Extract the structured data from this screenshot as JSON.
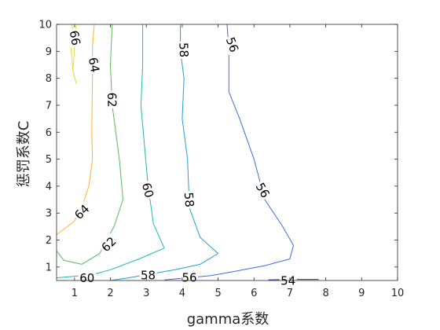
{
  "chart_data": {
    "type": "contour",
    "xlabel": "gamma系数",
    "ylabel": "惩罚系数C",
    "xlim": [
      0.5,
      10
    ],
    "ylim": [
      0.5,
      10
    ],
    "xticks": [
      1,
      2,
      3,
      4,
      5,
      6,
      7,
      8,
      9,
      10
    ],
    "yticks": [
      1,
      2,
      3,
      4,
      5,
      6,
      7,
      8,
      9,
      10
    ],
    "grid": false,
    "contours": [
      {
        "level": 66,
        "label": "66",
        "color": "#e8d833",
        "points": [
          [
            1.05,
            10.0
          ],
          [
            1.0,
            9.5
          ],
          [
            1.0,
            9.0
          ],
          [
            0.95,
            8.3
          ],
          [
            1.05,
            7.8
          ],
          [
            0.95,
            8.3
          ],
          [
            0.9,
            9.2
          ],
          [
            0.95,
            9.8
          ],
          [
            0.92,
            10.0
          ]
        ],
        "labels": [
          {
            "x": 1.02,
            "y": 9.5,
            "angle": 80
          }
        ]
      },
      {
        "level": 64,
        "label": "64",
        "color": "#fdb42f",
        "points": [
          [
            1.55,
            10.0
          ],
          [
            1.5,
            9.2
          ],
          [
            1.5,
            8.2
          ],
          [
            1.48,
            6.0
          ],
          [
            1.5,
            5.0
          ],
          [
            1.4,
            4.0
          ],
          [
            1.25,
            3.4
          ],
          [
            1.0,
            2.7
          ],
          [
            0.5,
            2.2
          ]
        ],
        "labels": [
          {
            "x": 1.55,
            "y": 8.5,
            "angle": 80
          },
          {
            "x": 1.2,
            "y": 3.05,
            "angle": -45
          }
        ]
      },
      {
        "level": 62,
        "label": "62",
        "color": "#58bb5a",
        "points": [
          [
            2.05,
            10.0
          ],
          [
            2.0,
            8.5
          ],
          [
            2.05,
            7.0
          ],
          [
            2.25,
            5.0
          ],
          [
            2.35,
            3.5
          ],
          [
            2.1,
            2.5
          ],
          [
            1.7,
            1.5
          ],
          [
            1.2,
            1.1
          ],
          [
            0.7,
            1.25
          ],
          [
            0.5,
            1.6
          ]
        ],
        "labels": [
          {
            "x": 2.05,
            "y": 7.2,
            "angle": 88
          },
          {
            "x": 1.95,
            "y": 1.85,
            "angle": -45
          }
        ]
      },
      {
        "level": 60,
        "label": "60",
        "color": "#1eb7b2",
        "points": [
          [
            2.9,
            10.0
          ],
          [
            2.9,
            8.5
          ],
          [
            2.85,
            7.0
          ],
          [
            2.95,
            5.5
          ],
          [
            3.05,
            4.0
          ],
          [
            3.2,
            2.6
          ],
          [
            3.5,
            1.7
          ],
          [
            2.8,
            1.3
          ],
          [
            2.0,
            0.9
          ],
          [
            1.5,
            0.72
          ],
          [
            0.5,
            0.6
          ]
        ],
        "labels": [
          {
            "x": 3.05,
            "y": 3.85,
            "angle": 75
          },
          {
            "x": 1.35,
            "y": 0.6,
            "angle": 0
          }
        ]
      },
      {
        "level": 58,
        "label": "58",
        "color": "#1e9fcf",
        "points": [
          [
            3.95,
            10.0
          ],
          [
            3.95,
            9.0
          ],
          [
            4.05,
            8.0
          ],
          [
            4.0,
            6.5
          ],
          [
            4.15,
            5.0
          ],
          [
            4.2,
            3.2
          ],
          [
            4.5,
            2.1
          ],
          [
            5.0,
            1.5
          ],
          [
            4.5,
            1.1
          ],
          [
            3.8,
            0.9
          ],
          [
            2.5,
            0.6
          ],
          [
            2.0,
            0.5
          ]
        ],
        "labels": [
          {
            "x": 4.05,
            "y": 9.05,
            "angle": 88
          },
          {
            "x": 4.2,
            "y": 3.5,
            "angle": 85
          },
          {
            "x": 3.05,
            "y": 0.7,
            "angle": 0
          }
        ]
      },
      {
        "level": 56,
        "label": "56",
        "color": "#3e6ddb",
        "points": [
          [
            5.25,
            10.0
          ],
          [
            5.3,
            9.0
          ],
          [
            5.3,
            7.5
          ],
          [
            5.6,
            6.5
          ],
          [
            6.0,
            5.0
          ],
          [
            6.3,
            3.5
          ],
          [
            6.8,
            2.5
          ],
          [
            7.1,
            1.8
          ],
          [
            7.0,
            1.3
          ],
          [
            6.3,
            1.05
          ],
          [
            5.3,
            0.8
          ],
          [
            4.8,
            0.68
          ],
          [
            3.5,
            0.52
          ]
        ],
        "labels": [
          {
            "x": 5.4,
            "y": 9.25,
            "angle": 70
          },
          {
            "x": 6.25,
            "y": 3.85,
            "angle": 60
          },
          {
            "x": 4.2,
            "y": 0.62,
            "angle": 0
          }
        ]
      },
      {
        "level": 54,
        "label": "54",
        "color": "#3b2dcb",
        "points": [
          [
            6.4,
            0.52
          ],
          [
            6.9,
            0.54
          ],
          [
            7.8,
            0.54
          ]
        ],
        "labels": [
          {
            "x": 6.95,
            "y": 0.5,
            "angle": 0
          }
        ]
      }
    ]
  }
}
